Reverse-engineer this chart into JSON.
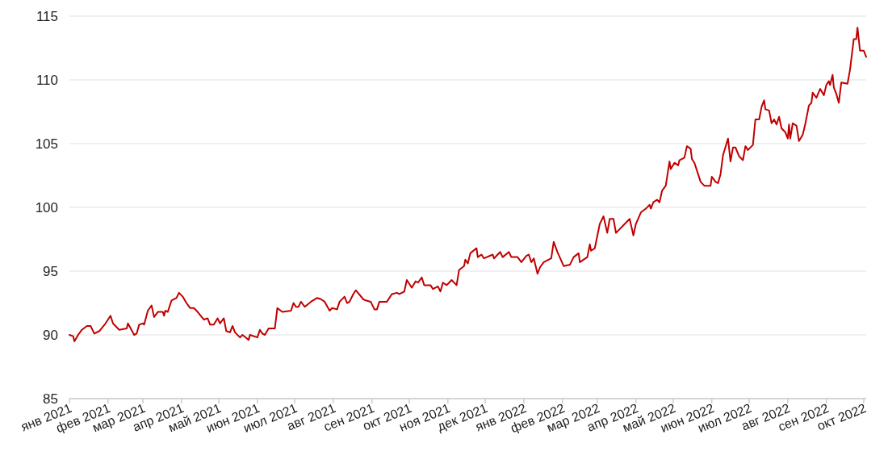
{
  "chart_data": {
    "type": "line",
    "xlim": [
      "2021-01-01",
      "2022-10-03"
    ],
    "ylim": [
      85,
      115
    ],
    "yticks": [
      85,
      90,
      95,
      100,
      105,
      110,
      115
    ],
    "grid": "y",
    "marker": "none",
    "line_style": "solid",
    "xticks": [
      {
        "value": "2021-01",
        "label": "янв 2021"
      },
      {
        "value": "2021-02",
        "label": "фев 2021"
      },
      {
        "value": "2021-03",
        "label": "мар 2021"
      },
      {
        "value": "2021-04",
        "label": "апр 2021"
      },
      {
        "value": "2021-05",
        "label": "май 2021"
      },
      {
        "value": "2021-06",
        "label": "июн 2021"
      },
      {
        "value": "2021-07",
        "label": "июл 2021"
      },
      {
        "value": "2021-08",
        "label": "авг 2021"
      },
      {
        "value": "2021-09",
        "label": "сен 2021"
      },
      {
        "value": "2021-10",
        "label": "окт 2021"
      },
      {
        "value": "2021-11",
        "label": "ноя 2021"
      },
      {
        "value": "2021-12",
        "label": "дек 2021"
      },
      {
        "value": "2022-01",
        "label": "янв 2022"
      },
      {
        "value": "2022-02",
        "label": "фев 2022"
      },
      {
        "value": "2022-03",
        "label": "мар 2022"
      },
      {
        "value": "2022-04",
        "label": "апр 2022"
      },
      {
        "value": "2022-05",
        "label": "май 2022"
      },
      {
        "value": "2022-06",
        "label": "июн 2022"
      },
      {
        "value": "2022-07",
        "label": "июл 2022"
      },
      {
        "value": "2022-08",
        "label": "авг 2022"
      },
      {
        "value": "2022-09",
        "label": "сен 2022"
      },
      {
        "value": "2022-10",
        "label": "окт 2022"
      }
    ],
    "x": [
      "2021-01-01",
      "2021-01-04",
      "2021-01-05",
      "2021-01-08",
      "2021-01-11",
      "2021-01-15",
      "2021-01-18",
      "2021-01-21",
      "2021-01-25",
      "2021-01-30",
      "2021-02-03",
      "2021-02-05",
      "2021-02-10",
      "2021-02-16",
      "2021-02-17",
      "2021-02-22",
      "2021-02-24",
      "2021-02-26",
      "2021-03-01",
      "2021-03-02",
      "2021-03-05",
      "2021-03-08",
      "2021-03-10",
      "2021-03-13",
      "2021-03-17",
      "2021-03-18",
      "2021-03-19",
      "2021-03-21",
      "2021-03-24",
      "2021-03-28",
      "2021-03-30",
      "2021-04-02",
      "2021-04-05",
      "2021-04-08",
      "2021-04-11",
      "2021-04-14",
      "2021-04-19",
      "2021-04-22",
      "2021-04-24",
      "2021-04-27",
      "2021-04-30",
      "2021-05-02",
      "2021-05-05",
      "2021-05-07",
      "2021-05-10",
      "2021-05-12",
      "2021-05-14",
      "2021-05-18",
      "2021-05-20",
      "2021-05-25",
      "2021-05-26",
      "2021-06-01",
      "2021-06-03",
      "2021-06-05",
      "2021-06-07",
      "2021-06-10",
      "2021-06-15",
      "2021-06-17",
      "2021-06-21",
      "2021-06-28",
      "2021-06-30",
      "2021-07-02",
      "2021-07-04",
      "2021-07-06",
      "2021-07-09",
      "2021-07-14",
      "2021-07-19",
      "2021-07-22",
      "2021-07-25",
      "2021-07-29",
      "2021-07-31",
      "2021-08-04",
      "2021-08-06",
      "2021-08-10",
      "2021-08-12",
      "2021-08-14",
      "2021-08-17",
      "2021-08-19",
      "2021-08-25",
      "2021-08-27",
      "2021-08-31",
      "2021-09-03",
      "2021-09-05",
      "2021-09-07",
      "2021-09-13",
      "2021-09-17",
      "2021-09-21",
      "2021-09-23",
      "2021-09-27",
      "2021-09-29",
      "2021-10-03",
      "2021-10-06",
      "2021-10-08",
      "2021-10-11",
      "2021-10-13",
      "2021-10-18",
      "2021-10-20",
      "2021-10-24",
      "2021-10-26",
      "2021-10-28",
      "2021-10-31",
      "2021-11-02",
      "2021-11-04",
      "2021-11-08",
      "2021-11-10",
      "2021-11-14",
      "2021-11-15",
      "2021-11-17",
      "2021-11-19",
      "2021-11-24",
      "2021-11-25",
      "2021-11-28",
      "2021-11-30",
      "2021-12-07",
      "2021-12-08",
      "2021-12-13",
      "2021-12-15",
      "2021-12-20",
      "2021-12-22",
      "2021-12-27",
      "2021-12-30",
      "2022-01-03",
      "2022-01-05",
      "2022-01-07",
      "2022-01-09",
      "2022-01-12",
      "2022-01-14",
      "2022-01-17",
      "2022-01-23",
      "2022-01-25",
      "2022-01-28",
      "2022-02-02",
      "2022-02-07",
      "2022-02-10",
      "2022-02-14",
      "2022-02-15",
      "2022-02-21",
      "2022-02-23",
      "2022-02-24",
      "2022-02-27",
      "2022-03-03",
      "2022-03-06",
      "2022-03-09",
      "2022-03-11",
      "2022-03-14",
      "2022-03-16",
      "2022-03-21",
      "2022-03-27",
      "2022-03-30",
      "2022-04-01",
      "2022-04-05",
      "2022-04-09",
      "2022-04-12",
      "2022-04-13",
      "2022-04-15",
      "2022-04-18",
      "2022-04-20",
      "2022-04-22",
      "2022-04-25",
      "2022-04-28",
      "2022-04-29",
      "2022-05-02",
      "2022-05-05",
      "2022-05-06",
      "2022-05-10",
      "2022-05-12",
      "2022-05-15",
      "2022-05-16",
      "2022-05-18",
      "2022-05-20",
      "2022-05-23",
      "2022-05-26",
      "2022-05-31",
      "2022-06-01",
      "2022-06-04",
      "2022-06-06",
      "2022-06-08",
      "2022-06-10",
      "2022-06-14",
      "2022-06-16",
      "2022-06-18",
      "2022-06-20",
      "2022-06-23",
      "2022-06-26",
      "2022-06-28",
      "2022-06-30",
      "2022-07-04",
      "2022-07-06",
      "2022-07-09",
      "2022-07-11",
      "2022-07-13",
      "2022-07-14",
      "2022-07-17",
      "2022-07-19",
      "2022-07-21",
      "2022-07-23",
      "2022-07-25",
      "2022-07-27",
      "2022-07-30",
      "2022-08-01",
      "2022-08-02",
      "2022-08-03",
      "2022-08-05",
      "2022-08-08",
      "2022-08-10",
      "2022-08-13",
      "2022-08-15",
      "2022-08-18",
      "2022-08-20",
      "2022-08-21",
      "2022-08-24",
      "2022-08-27",
      "2022-08-30",
      "2022-09-01",
      "2022-09-03",
      "2022-09-04",
      "2022-09-06",
      "2022-09-07",
      "2022-09-09",
      "2022-09-11",
      "2022-09-13",
      "2022-09-18",
      "2022-09-20",
      "2022-09-23",
      "2022-09-25",
      "2022-09-26",
      "2022-09-28",
      "2022-10-01",
      "2022-10-03"
    ],
    "series": [
      {
        "color": "#c00000",
        "values": [
          90.0,
          89.9,
          89.5,
          90.0,
          90.4,
          90.7,
          90.7,
          90.1,
          90.3,
          90.9,
          91.5,
          90.9,
          90.4,
          90.5,
          90.9,
          90.0,
          90.1,
          90.8,
          90.9,
          90.8,
          91.9,
          92.3,
          91.4,
          91.8,
          91.8,
          91.5,
          91.9,
          91.8,
          92.7,
          92.9,
          93.3,
          93.0,
          92.5,
          92.1,
          92.1,
          91.8,
          91.2,
          91.3,
          90.8,
          90.8,
          91.3,
          90.9,
          91.3,
          90.3,
          90.2,
          90.7,
          90.2,
          89.8,
          90.0,
          89.6,
          90.0,
          89.8,
          90.4,
          90.1,
          90.0,
          90.5,
          90.5,
          92.1,
          91.8,
          91.9,
          92.5,
          92.2,
          92.2,
          92.6,
          92.2,
          92.6,
          92.9,
          92.8,
          92.6,
          91.9,
          92.1,
          92.0,
          92.6,
          93.0,
          92.5,
          92.6,
          93.2,
          93.5,
          92.8,
          92.7,
          92.6,
          92.0,
          92.0,
          92.6,
          92.6,
          93.2,
          93.3,
          93.2,
          93.4,
          94.3,
          93.7,
          94.2,
          94.1,
          94.5,
          93.9,
          93.9,
          93.6,
          93.8,
          93.4,
          94.1,
          93.9,
          94.1,
          94.3,
          93.9,
          95.1,
          95.4,
          95.9,
          95.6,
          96.4,
          96.8,
          96.1,
          96.3,
          96.0,
          96.3,
          96.0,
          96.5,
          96.1,
          96.5,
          96.1,
          96.1,
          95.7,
          96.2,
          96.3,
          95.7,
          96.0,
          94.8,
          95.3,
          95.7,
          96.0,
          97.3,
          96.5,
          95.4,
          95.5,
          96.1,
          96.4,
          95.7,
          96.1,
          97.1,
          96.6,
          96.8,
          98.7,
          99.3,
          98.0,
          99.1,
          99.1,
          98.0,
          98.5,
          99.1,
          97.8,
          98.7,
          99.6,
          99.9,
          100.2,
          99.9,
          100.4,
          100.6,
          100.4,
          101.3,
          101.7,
          103.6,
          103.0,
          103.5,
          103.3,
          103.7,
          103.9,
          104.8,
          104.6,
          103.8,
          103.5,
          102.9,
          102.0,
          101.7,
          101.7,
          102.4,
          102.0,
          101.9,
          102.6,
          104.1,
          105.4,
          103.6,
          104.7,
          104.7,
          104.0,
          103.7,
          104.8,
          104.5,
          104.9,
          106.9,
          106.9,
          107.9,
          108.4,
          107.7,
          107.6,
          106.6,
          106.9,
          106.5,
          107.1,
          106.2,
          105.9,
          105.4,
          106.5,
          105.4,
          106.6,
          106.4,
          105.2,
          105.7,
          106.5,
          108.0,
          108.2,
          109.0,
          108.6,
          109.3,
          108.8,
          109.6,
          109.9,
          109.6,
          110.4,
          109.4,
          108.9,
          108.2,
          109.8,
          109.7,
          110.8,
          113.2,
          113.2,
          114.1,
          112.3,
          112.3,
          111.8
        ]
      }
    ]
  }
}
